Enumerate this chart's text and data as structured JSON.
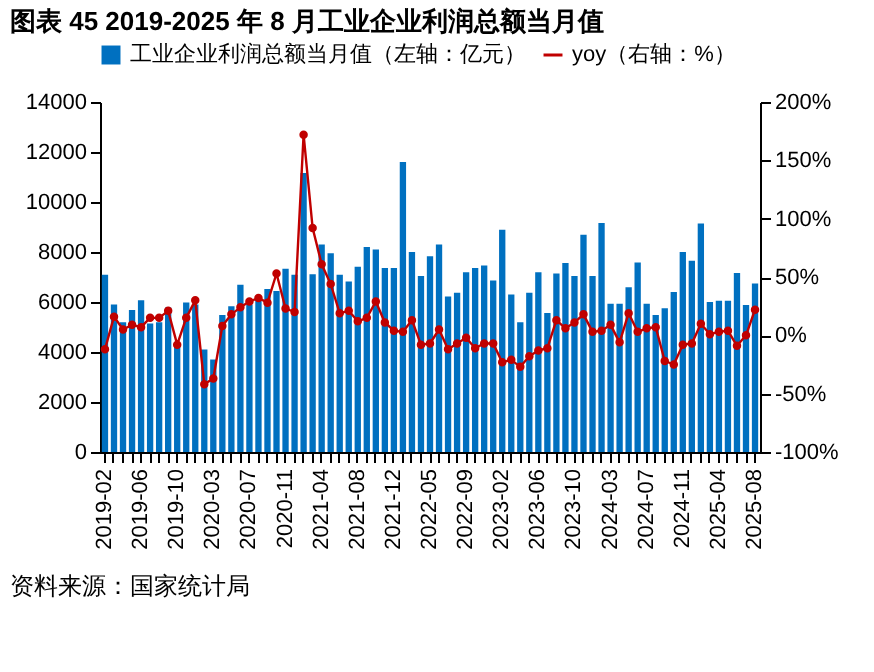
{
  "chart_data": {
    "type": "bar",
    "title": "图表 45 2019-2025 年 8 月工业企业利润总额当月值",
    "categories": [
      "2019-02",
      null,
      null,
      null,
      "2019-06",
      null,
      null,
      null,
      "2019-10",
      null,
      null,
      null,
      "2020-03",
      null,
      null,
      null,
      "2020-07",
      null,
      null,
      null,
      "2020-11",
      null,
      null,
      null,
      "2021-04",
      null,
      null,
      null,
      "2021-08",
      null,
      null,
      null,
      "2021-12",
      null,
      null,
      null,
      "2022-05",
      null,
      null,
      null,
      "2022-09",
      null,
      null,
      null,
      "2023-02",
      null,
      null,
      null,
      "2023-06",
      null,
      null,
      null,
      "2023-10",
      null,
      null,
      null,
      "2024-03",
      null,
      null,
      null,
      "2024-07",
      null,
      null,
      null,
      "2024-11",
      null,
      null,
      null,
      "2025-04",
      null,
      null,
      null,
      "2025-08"
    ],
    "series": [
      {
        "name": "工业企业利润总额当月值（左轴：亿元）",
        "color": "#0070c0",
        "values": [
          7090,
          5900,
          5190,
          5680,
          6070,
          5140,
          5190,
          5780,
          4200,
          5980,
          5900,
          4100,
          3700,
          5480,
          5830,
          6690,
          5900,
          6150,
          6520,
          6440,
          7330,
          7090,
          11160,
          7110,
          8300,
          7950,
          7090,
          6820,
          7410,
          8200,
          8100,
          7360,
          7360,
          11600,
          8000,
          7040,
          7830,
          8300,
          6220,
          6370,
          7190,
          7360,
          7460,
          6860,
          8890,
          6300,
          5190,
          6370,
          7190,
          5560,
          7140,
          7560,
          7040,
          8690,
          7040,
          9160,
          5930,
          5930,
          6590,
          7580,
          5930,
          5480,
          5750,
          6400,
          8000,
          7650,
          9140,
          6000,
          6050,
          6050,
          7160,
          5880,
          6740
        ]
      },
      {
        "name": "yoy（右轴：%）",
        "type": "line",
        "axis": "y2",
        "color": "#c00000",
        "marker": "circle",
        "line_style": "solid",
        "values": [
          -12,
          16,
          5,
          9,
          7,
          15,
          15,
          21,
          -8,
          15,
          30,
          -42,
          -37,
          8,
          18,
          24,
          29,
          32,
          28,
          53,
          23,
          20,
          172,
          92,
          61,
          44,
          19,
          21,
          12,
          15,
          29,
          11,
          4,
          3,
          13,
          -8,
          -7,
          5,
          -12,
          -7,
          -2,
          -11,
          -7,
          -7,
          -23,
          -21,
          -27,
          -18,
          -13,
          -11,
          13,
          6,
          11,
          18,
          3,
          4,
          9,
          -6,
          19,
          3,
          6,
          7,
          -22,
          -25,
          -8,
          -7,
          10,
          1,
          3,
          4,
          -9,
          0,
          22
        ]
      }
    ],
    "ylim": [
      0,
      14000
    ],
    "yticks": [
      0,
      2000,
      4000,
      6000,
      8000,
      10000,
      12000,
      14000
    ],
    "y2lim": [
      -100,
      200
    ],
    "y2ticks": [
      {
        "value": -100,
        "label": "-100%"
      },
      {
        "value": -50,
        "label": "-50%"
      },
      {
        "value": 0,
        "label": "0%"
      },
      {
        "value": 50,
        "label": "50%"
      },
      {
        "value": 100,
        "label": "100%"
      },
      {
        "value": 150,
        "label": "150%"
      },
      {
        "value": 200,
        "label": "200%"
      }
    ],
    "legend": "top",
    "annotations": [
      "资料来源：国家统计局"
    ]
  }
}
